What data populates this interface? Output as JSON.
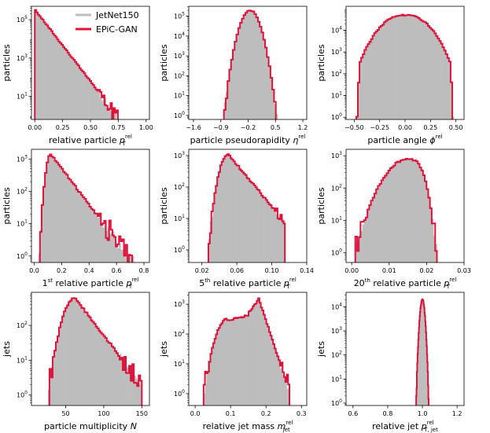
{
  "colors": {
    "reference": "#bdbdbd",
    "model": "#dc143c"
  },
  "legend": {
    "items": [
      {
        "label": "JetNet150",
        "color": "#bdbdbd"
      },
      {
        "label": "EPiC-GAN",
        "color": "#dc143c"
      }
    ],
    "placement": "upper right of first panel"
  },
  "chart_data": [
    {
      "id": "p1",
      "type": "histogram",
      "xlabel": "relative particle",
      "xsym": "p",
      "xsub": "T",
      "xsup": "rel",
      "ylabel": "particles",
      "log": true,
      "xlim": [
        -0.03,
        1.03
      ],
      "ylim_exp": [
        -0.2,
        5.7
      ],
      "xticks": [
        0,
        0.25,
        0.5,
        0.75,
        1.0
      ],
      "xtick_labels": [
        "0.00",
        "0.25",
        "0.50",
        "0.75",
        "1.00"
      ],
      "yticks_exp": [
        1,
        3,
        5
      ],
      "peak": {
        "x": 0.005,
        "logy": 5.5
      },
      "shape": "decay",
      "bins": 60,
      "range": [
        0,
        0.8
      ],
      "decay": 0.1,
      "tail": 0.6,
      "noise": 0.25
    },
    {
      "id": "p2",
      "type": "histogram",
      "xlabel": "particle pseudorapidity",
      "xsym": "η",
      "xsub": "",
      "xsup": "rel",
      "ylabel": "particles",
      "log": true,
      "xlim": [
        -1.72,
        1.3
      ],
      "ylim_exp": [
        -0.2,
        5.5
      ],
      "xticks": [
        -1.6,
        -0.9,
        -0.2,
        0.5,
        1.2
      ],
      "xtick_labels": [
        "−1.6",
        "−0.9",
        "−0.2",
        "0.5",
        "1.2"
      ],
      "yticks_exp": [
        0,
        1,
        2,
        3,
        4,
        5
      ],
      "peak": {
        "x": -0.15,
        "logy": 5.3
      },
      "shape": "peak",
      "bins": 60,
      "range": [
        -1.6,
        1.15
      ],
      "width": 0.28,
      "noise": 0.3
    },
    {
      "id": "p3",
      "type": "histogram",
      "xlabel": "particle angle",
      "xsym": "ϕ",
      "xsub": "",
      "xsup": "rel",
      "ylabel": "particles",
      "log": true,
      "xlim": [
        -0.58,
        0.58
      ],
      "ylim_exp": [
        -0.1,
        5.1
      ],
      "xticks": [
        -0.5,
        -0.25,
        0,
        0.25,
        0.5
      ],
      "xtick_labels": [
        "−0.50",
        "−0.25",
        "0.00",
        "0.25",
        "0.50"
      ],
      "yticks_exp": [
        0,
        1,
        2,
        3,
        4
      ],
      "peak": {
        "x": 0,
        "logy": 4.7
      },
      "shape": "broad",
      "bins": 60,
      "range": [
        -0.48,
        0.48
      ],
      "noise": 0.05
    },
    {
      "id": "p4",
      "type": "histogram",
      "xlabel": "relative particle",
      "xprefix": "1",
      "xprefix_sup": "st",
      "xsym": "p",
      "xsub": "T",
      "xsup": "rel",
      "ylabel": "particles",
      "log": true,
      "xlim": [
        -0.02,
        0.84
      ],
      "ylim_exp": [
        -0.2,
        3.3
      ],
      "xticks": [
        0,
        0.2,
        0.4,
        0.6,
        0.8
      ],
      "xtick_labels": [
        "0.0",
        "0.2",
        "0.4",
        "0.6",
        "0.8"
      ],
      "yticks_exp": [
        0,
        1,
        2,
        3
      ],
      "peak": {
        "x": 0.12,
        "logy": 3.15
      },
      "shape": "skew",
      "bins": 60,
      "range": [
        0.03,
        0.75
      ],
      "width": 0.05,
      "decay": 0.18,
      "noise": 0.2
    },
    {
      "id": "p5",
      "type": "histogram",
      "xlabel": "relative particle",
      "xprefix": "5",
      "xprefix_sup": "th",
      "xsym": "p",
      "xsub": "T",
      "xsup": "rel",
      "ylabel": "particles",
      "log": true,
      "xlim": [
        0.005,
        0.14
      ],
      "ylim_exp": [
        -0.4,
        3.2
      ],
      "xticks": [
        0.02,
        0.06,
        0.1,
        0.14
      ],
      "xtick_labels": [
        "0.02",
        "0.06",
        "0.10",
        "0.14"
      ],
      "yticks_exp": [
        0,
        1,
        2,
        3
      ],
      "peak": {
        "x": 0.05,
        "logy": 3.05
      },
      "shape": "skew",
      "bins": 60,
      "range": [
        0.014,
        0.115
      ],
      "width": 0.014,
      "decay": 0.03,
      "noise": 0.2
    },
    {
      "id": "p6",
      "type": "histogram",
      "xlabel": "relative particle",
      "xprefix": "20",
      "xprefix_sup": "th",
      "xsym": "p",
      "xsub": "T",
      "xsup": "rel",
      "ylabel": "particles",
      "log": true,
      "xlim": [
        -0.0015,
        0.03
      ],
      "ylim_exp": [
        -0.3,
        3.2
      ],
      "xticks": [
        0,
        0.01,
        0.02,
        0.03
      ],
      "xtick_labels": [
        "0.00",
        "0.01",
        "0.02",
        "0.03"
      ],
      "yticks_exp": [
        0,
        1,
        2,
        3
      ],
      "peak": {
        "x": 0.015,
        "logy": 2.9
      },
      "shape": "leftskew",
      "bins": 55,
      "range": [
        0.0005,
        0.026
      ],
      "width": 0.006,
      "noise": 0.15
    },
    {
      "id": "p7",
      "type": "histogram",
      "xlabel": "particle multiplicity",
      "xsym": "N",
      "xsub": "",
      "xsup": "",
      "ylabel": "jets",
      "log": true,
      "xlim": [
        5,
        160
      ],
      "ylim_exp": [
        -0.3,
        2.95
      ],
      "xticks": [
        50,
        100,
        150
      ],
      "xtick_labels": [
        "50",
        "100",
        "150"
      ],
      "yticks_exp": [
        0,
        1,
        2
      ],
      "peak": {
        "x": 62,
        "logy": 2.8
      },
      "shape": "skew",
      "bins": 65,
      "range": [
        14,
        150
      ],
      "width": 22,
      "decay": 35,
      "noise": 0.12
    },
    {
      "id": "p8",
      "type": "histogram",
      "xlabel": "relative jet mass",
      "xsym": "m",
      "xsub": "jet",
      "xsup": "rel",
      "ylabel": "jets",
      "log": true,
      "xlim": [
        -0.018,
        0.315
      ],
      "ylim_exp": [
        -0.4,
        3.4
      ],
      "xticks": [
        0,
        0.1,
        0.2,
        0.3
      ],
      "xtick_labels": [
        "0.0",
        "0.1",
        "0.2",
        "0.3"
      ],
      "yticks_exp": [
        0,
        1,
        2,
        3
      ],
      "peak": {
        "x": 0.17,
        "logy": 3.2
      },
      "shape": "mass",
      "bins": 65,
      "range": [
        0.02,
        0.27
      ],
      "noise": 0.2
    },
    {
      "id": "p9",
      "type": "histogram",
      "xlabel": "relative jet",
      "xsym": "p",
      "xsub": "T, jet",
      "xsup": "rel",
      "ylabel": "jets",
      "log": true,
      "xlim": [
        0.56,
        1.24
      ],
      "ylim_exp": [
        -0.1,
        4.6
      ],
      "xticks": [
        0.6,
        0.8,
        1.0,
        1.2
      ],
      "xtick_labels": [
        "0.6",
        "0.8",
        "1.0",
        "1.2"
      ],
      "yticks_exp": [
        0,
        1,
        2,
        3,
        4
      ],
      "peak": {
        "x": 1.0,
        "logy": 4.3
      },
      "shape": "peak",
      "bins": 60,
      "range": [
        0.95,
        1.07
      ],
      "width": 0.017,
      "noise": 0.15
    }
  ]
}
